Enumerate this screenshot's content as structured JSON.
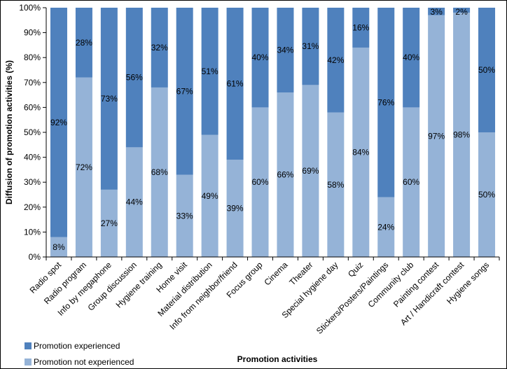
{
  "chart_data": {
    "type": "bar",
    "stacked": true,
    "categories": [
      "Radio spot",
      "Radio program",
      "Info by megaphone",
      "Group discussion",
      "Hygiene training",
      "Home visit",
      "Material distribution",
      "Info from neighbor/friend",
      "Focus group",
      "Cinema",
      "Theater",
      "Special hygiene day",
      "Quiz",
      "Stickers/Posters/Paintings",
      "Community club",
      "Painting contest",
      "Art / Handicraft contest",
      "Hygiene songs"
    ],
    "series": [
      {
        "name": "Promotion not experienced",
        "color": "#95b3d7",
        "values": [
          8,
          72,
          27,
          44,
          68,
          33,
          49,
          39,
          60,
          66,
          69,
          58,
          84,
          24,
          60,
          97,
          98,
          50
        ],
        "labels": [
          "8%",
          "72%",
          "27%",
          "44%",
          "68%",
          "33%",
          "49%",
          "39%",
          "60%",
          "66%",
          "69%",
          "58%",
          "84%",
          "24%",
          "60%",
          "97%",
          "98%",
          "50%"
        ]
      },
      {
        "name": "Promotion experienced",
        "color": "#4f81bd",
        "values": [
          92,
          28,
          73,
          56,
          32,
          67,
          51,
          61,
          40,
          34,
          31,
          42,
          16,
          76,
          40,
          3,
          2,
          50
        ],
        "labels": [
          "92%",
          "28%",
          "73%",
          "56%",
          "32%",
          "67%",
          "51%",
          "61%",
          "40%",
          "34%",
          "31%",
          "42%",
          "16%",
          "76%",
          "40%",
          "3%",
          "2%",
          "50%"
        ]
      }
    ],
    "xlabel": "Promotion activities",
    "ylabel": "Diffusion of  promotion activities (%)",
    "ylim": [
      0,
      100
    ],
    "yticks": [
      "0%",
      "10%",
      "20%",
      "30%",
      "40%",
      "50%",
      "60%",
      "70%",
      "80%",
      "90%",
      "100%"
    ],
    "grid": false,
    "legend": {
      "position": "bottom-left",
      "entries": [
        "Promotion experienced",
        "Promotion not experienced"
      ]
    }
  }
}
